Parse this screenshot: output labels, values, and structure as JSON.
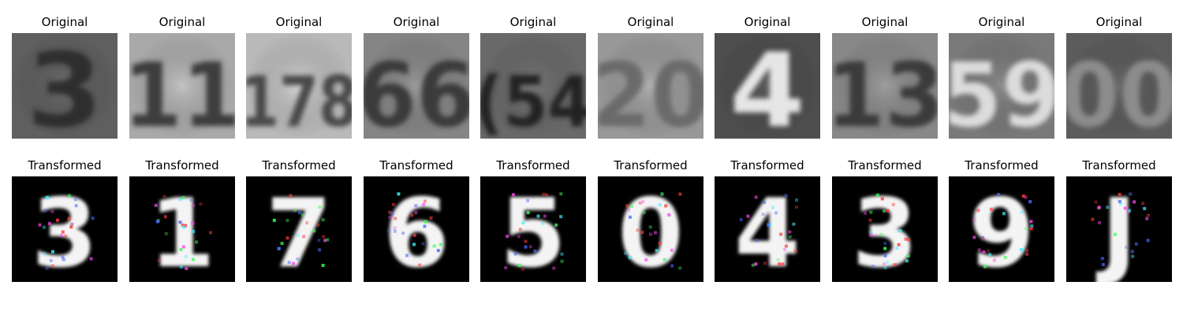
{
  "figure": {
    "rows": [
      {
        "title": "Original",
        "style": "grayscale-photo",
        "panels": [
          {
            "digit": "3",
            "bg": "#6e6e6e",
            "fg": "#2e2e2e",
            "icon": "svhn-digit-3-image"
          },
          {
            "digit": "11",
            "bg": "#c4c4c4",
            "fg": "#3c3c3c",
            "icon": "svhn-digit-11-image"
          },
          {
            "digit": "178",
            "bg": "#d6d6d6",
            "fg": "#4a4a4a",
            "icon": "svhn-digit-178-image"
          },
          {
            "digit": "66",
            "bg": "#9a9a9a",
            "fg": "#3a3a3a",
            "icon": "svhn-digit-66-image"
          },
          {
            "digit": "(54",
            "bg": "#7a7a7a",
            "fg": "#222222",
            "icon": "svhn-digit-54-image"
          },
          {
            "digit": "20",
            "bg": "#b0b0b0",
            "fg": "#6a6a6a",
            "icon": "svhn-digit-20-image"
          },
          {
            "digit": "4",
            "bg": "#5a5a5a",
            "fg": "#e6e6e6",
            "icon": "svhn-digit-4-image"
          },
          {
            "digit": "13",
            "bg": "#9e9e9e",
            "fg": "#3a3a3a",
            "icon": "svhn-digit-13-image"
          },
          {
            "digit": "59",
            "bg": "#8c8c8c",
            "fg": "#dcdcdc",
            "icon": "svhn-digit-59-image"
          },
          {
            "digit": "00",
            "bg": "#6a6a6a",
            "fg": "#8c8c8c",
            "icon": "svhn-digit-00-image"
          }
        ]
      },
      {
        "title": "Transformed",
        "style": "white-on-black",
        "panels": [
          {
            "digit": "3",
            "bg": "#000000",
            "fg": "#f4f4f4",
            "icon": "transformed-digit-3-image"
          },
          {
            "digit": "1",
            "bg": "#000000",
            "fg": "#f4f4f4",
            "icon": "transformed-digit-1-image"
          },
          {
            "digit": "7",
            "bg": "#000000",
            "fg": "#f4f4f4",
            "icon": "transformed-digit-7-image"
          },
          {
            "digit": "6",
            "bg": "#000000",
            "fg": "#f4f4f4",
            "icon": "transformed-digit-6-image"
          },
          {
            "digit": "5",
            "bg": "#000000",
            "fg": "#f4f4f4",
            "icon": "transformed-digit-5-image"
          },
          {
            "digit": "0",
            "bg": "#000000",
            "fg": "#f4f4f4",
            "icon": "transformed-digit-0-image"
          },
          {
            "digit": "4",
            "bg": "#000000",
            "fg": "#f4f4f4",
            "icon": "transformed-digit-4-image"
          },
          {
            "digit": "3",
            "bg": "#000000",
            "fg": "#f4f4f4",
            "icon": "transformed-digit-3b-image"
          },
          {
            "digit": "9",
            "bg": "#000000",
            "fg": "#f4f4f4",
            "icon": "transformed-digit-9-image"
          },
          {
            "digit": "J",
            "bg": "#000000",
            "fg": "#f4f4f4",
            "icon": "transformed-digit-j-image"
          }
        ]
      }
    ],
    "noise_colors": [
      "#ff3b3b",
      "#3bff5a",
      "#4a6bff",
      "#ff4af0",
      "#3bf0ff"
    ]
  }
}
